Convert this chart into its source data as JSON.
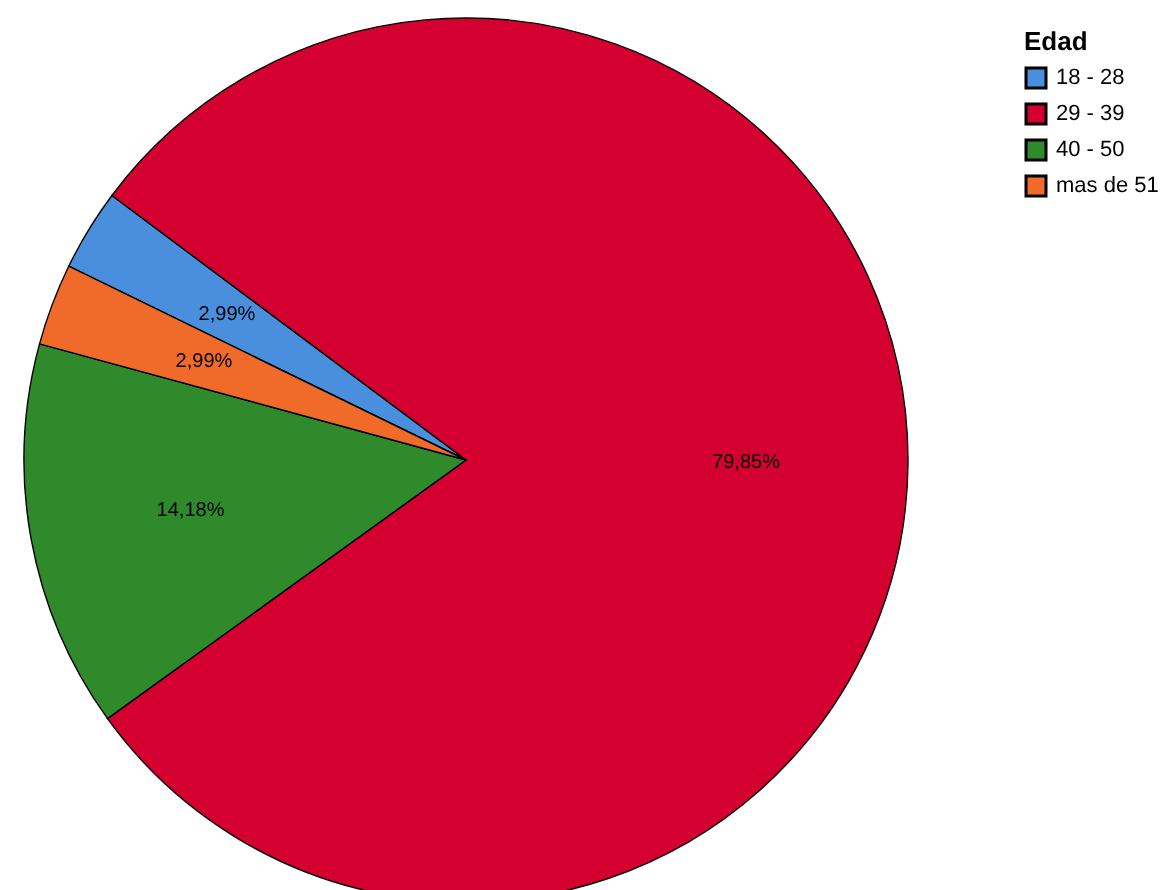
{
  "chart_data": {
    "type": "pie",
    "legend_title": "Edad",
    "legend": "top right",
    "categories": [
      "18 - 28",
      "29 - 39",
      "40 - 50",
      "mas de 51"
    ],
    "values": [
      2.99,
      79.85,
      14.18,
      2.99
    ],
    "colors": [
      "#4a8ede",
      "#d4002f",
      "#2f8a2c",
      "#f06a2a"
    ],
    "value_labels": [
      "2,99%",
      "79,85%",
      "14,18%",
      "2,99%"
    ]
  }
}
